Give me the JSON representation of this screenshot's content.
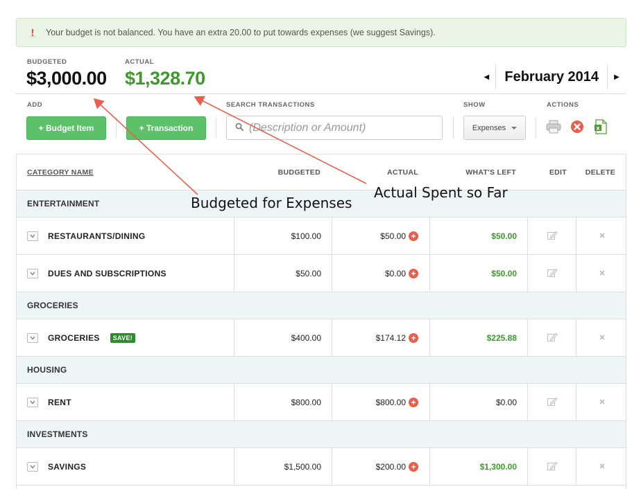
{
  "alert": {
    "text": "Your budget is not balanced. You have an extra 20.00 to put towards expenses (we suggest Savings)."
  },
  "totals": {
    "budgeted_label": "BUDGETED",
    "budgeted_value": "$3,000.00",
    "actual_label": "ACTUAL",
    "actual_value": "$1,328.70",
    "actual_color": "#3c9a2b"
  },
  "month_nav": {
    "month": "February 2014",
    "prev_icon": "triangle-left-icon",
    "next_icon": "triangle-right-icon"
  },
  "toolbar": {
    "add_label": "ADD",
    "budget_item_button": "+ Budget Item",
    "transaction_button": "+ Transaction",
    "search_label": "SEARCH TRANSACTIONS",
    "search_placeholder": "(Description or Amount)",
    "show_label": "SHOW",
    "show_selected": "Expenses",
    "actions_label": "ACTIONS",
    "button_color": "#5cc168"
  },
  "table": {
    "headers": {
      "category": "CATEGORY NAME",
      "budgeted": "BUDGETED",
      "actual": "ACTUAL",
      "left": "WHAT'S LEFT",
      "edit": "EDIT",
      "delete": "DELETE"
    },
    "groups": [
      {
        "name": "ENTERTAINMENT",
        "items": [
          {
            "name": "RESTAURANTS/DINING",
            "badge": "",
            "budgeted": "$100.00",
            "actual": "$50.00",
            "left": "$50.00",
            "left_positive": true
          },
          {
            "name": "DUES AND SUBSCRIPTIONS",
            "badge": "",
            "budgeted": "$50.00",
            "actual": "$0.00",
            "left": "$50.00",
            "left_positive": true
          }
        ]
      },
      {
        "name": "GROCERIES",
        "items": [
          {
            "name": "GROCERIES",
            "badge": "SAVE!",
            "budgeted": "$400.00",
            "actual": "$174.12",
            "left": "$225.88",
            "left_positive": true
          }
        ]
      },
      {
        "name": "HOUSING",
        "items": [
          {
            "name": "RENT",
            "badge": "",
            "budgeted": "$800.00",
            "actual": "$800.00",
            "left": "$0.00",
            "left_positive": false
          }
        ]
      },
      {
        "name": "INVESTMENTS",
        "items": [
          {
            "name": "SAVINGS",
            "badge": "",
            "budgeted": "$1,500.00",
            "actual": "$200.00",
            "left": "$1,300.00",
            "left_positive": true
          }
        ]
      }
    ]
  },
  "annotations": {
    "budgeted": "Budgeted for Expenses",
    "actual": "Actual Spent so Far",
    "arrow_color": "#e8604c"
  }
}
